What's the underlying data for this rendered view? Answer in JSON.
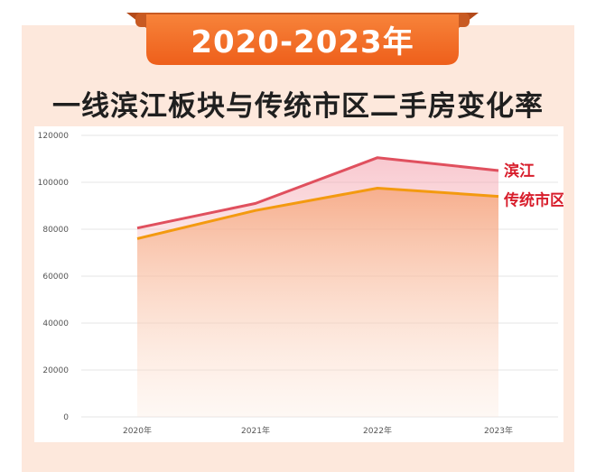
{
  "banner": {
    "title": "2020-2023年"
  },
  "headline": "一线滨江板块与传统市区二手房变化率",
  "colors": {
    "panel_bg": "#fde8dc",
    "banner_orange": "#f26a21",
    "banner_dark": "#b34a1a",
    "binjiang_line": "#e0505e",
    "traditional_line": "#f39a10",
    "series_label": "#d81e2c"
  },
  "chart_data": {
    "type": "area",
    "title": "一线滨江板块与传统市区二手房变化率",
    "categories": [
      "2020年",
      "2021年",
      "2022年",
      "2023年"
    ],
    "series": [
      {
        "name": "滨江",
        "values": [
          80500,
          91000,
          110500,
          105000
        ]
      },
      {
        "name": "传统市区",
        "values": [
          76000,
          88000,
          97500,
          94000
        ]
      }
    ],
    "ylim": [
      0,
      120000
    ],
    "yticks": [
      0,
      20000,
      40000,
      60000,
      80000,
      100000,
      120000
    ],
    "xlabel": "",
    "ylabel": "",
    "grid": true
  }
}
